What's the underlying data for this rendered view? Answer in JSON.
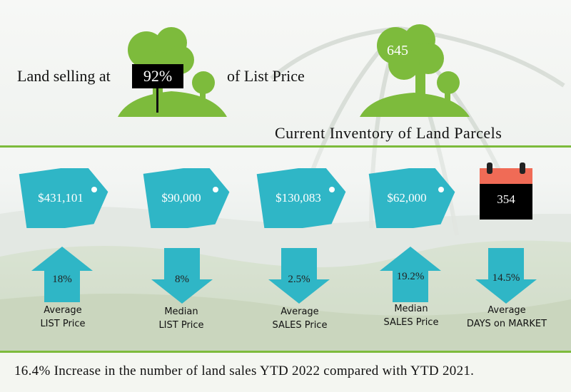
{
  "header": {
    "land_selling_prefix": "Land selling at",
    "land_selling_percent": "92%",
    "land_selling_suffix": "of List Price",
    "inventory_count": "645",
    "inventory_caption": "Current Inventory of Land Parcels"
  },
  "stats": [
    {
      "tag_value": "$431,101",
      "change": "18%",
      "direction": "up",
      "label_line1": "Average",
      "label_line2": "LIST Price"
    },
    {
      "tag_value": "$90,000",
      "change": "8%",
      "direction": "down",
      "label_line1": "Median",
      "label_line2": "LIST Price"
    },
    {
      "tag_value": "$130,083",
      "change": "2.5%",
      "direction": "down",
      "label_line1": "Average",
      "label_line2": "SALES Price"
    },
    {
      "tag_value": "$62,000",
      "change": "19.2%",
      "direction": "up",
      "label_line1": "Median",
      "label_line2": "SALES Price"
    },
    {
      "tag_value": "354",
      "change": "14.5%",
      "direction": "down",
      "label_line1": "Average",
      "label_line2": "DAYS on MARKET"
    }
  ],
  "footer": {
    "summary": "16.4% Increase in the number of land sales YTD 2022 compared with YTD 2021."
  },
  "colors": {
    "tree_green": "#7dbb3c",
    "tag_teal": "#2fb6c6",
    "rule_green": "#7dbb3c",
    "calendar_red": "#f06b56"
  },
  "icons": [
    "tree-icon",
    "price-tag-icon",
    "calendar-icon",
    "arrow-up-icon",
    "arrow-down-icon"
  ]
}
